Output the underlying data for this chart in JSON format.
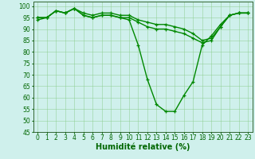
{
  "xlabel": "Humidité relative (%)",
  "xlim": [
    -0.5,
    23.5
  ],
  "ylim": [
    45,
    102
  ],
  "yticks": [
    45,
    50,
    55,
    60,
    65,
    70,
    75,
    80,
    85,
    90,
    95,
    100
  ],
  "xticks": [
    0,
    1,
    2,
    3,
    4,
    5,
    6,
    7,
    8,
    9,
    10,
    11,
    12,
    13,
    14,
    15,
    16,
    17,
    18,
    19,
    20,
    21,
    22,
    23
  ],
  "bg_color": "#cff0ec",
  "grid_color": "#88cc88",
  "line_color": "#008800",
  "curve1_x": [
    0,
    1,
    2,
    3,
    4,
    5,
    6,
    7,
    8,
    9,
    10,
    11,
    12,
    13,
    14,
    15,
    16,
    17,
    18,
    19,
    20,
    21,
    22,
    23
  ],
  "curve1_y": [
    94,
    95,
    98,
    97,
    99,
    96,
    95,
    96,
    96,
    95,
    94,
    83,
    68,
    57,
    54,
    54,
    61,
    67,
    83,
    87,
    92,
    96,
    97,
    97
  ],
  "curve2_x": [
    0,
    1,
    2,
    3,
    4,
    5,
    6,
    7,
    8,
    9,
    10,
    11,
    12,
    13,
    14,
    15,
    16,
    17,
    18,
    19,
    20,
    21,
    22,
    23
  ],
  "curve2_y": [
    95,
    95,
    98,
    97,
    99,
    96,
    95,
    96,
    96,
    95,
    95,
    93,
    91,
    90,
    90,
    89,
    88,
    86,
    84,
    85,
    91,
    96,
    97,
    97
  ],
  "curve3_x": [
    0,
    1,
    2,
    3,
    4,
    5,
    6,
    7,
    8,
    9,
    10,
    11,
    12,
    13,
    14,
    15,
    16,
    17,
    18,
    19,
    20,
    21,
    22,
    23
  ],
  "curve3_y": [
    95,
    95,
    98,
    97,
    99,
    97,
    96,
    97,
    97,
    96,
    96,
    94,
    93,
    92,
    92,
    91,
    90,
    88,
    85,
    86,
    91,
    96,
    97,
    97
  ],
  "marker_size": 3.5,
  "line_width": 1.0,
  "tick_fontsize": 5.5,
  "label_fontsize": 7.0
}
